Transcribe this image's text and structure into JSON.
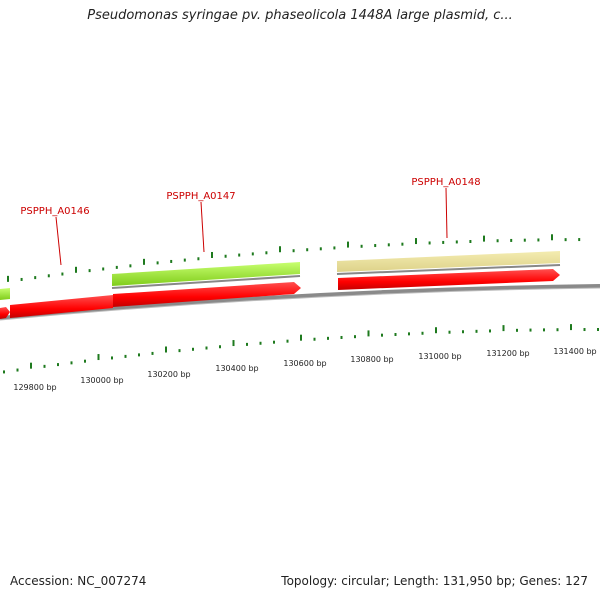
{
  "title": "Pseudomonas syringae pv. phaseolicola 1448A large plasmid, c...",
  "accession": "Accession: NC_007274",
  "summary": "Topology: circular; Length: 131,950 bp; Genes: 127",
  "colors": {
    "cds": "#ff0000",
    "gene_green": "#99ee22",
    "gene_tan": "#ece39b",
    "backbone": "#888888",
    "tick": "#1e7a1e",
    "label": "#cc0000"
  },
  "genes": [
    {
      "name": "PSPPH_A0146"
    },
    {
      "name": "PSPPH_A0147"
    },
    {
      "name": "PSPPH_A0148"
    }
  ],
  "ruler": {
    "labels": [
      "129800 bp",
      "130000 bp",
      "130200 bp",
      "130400 bp",
      "130600 bp",
      "130800 bp",
      "131000 bp",
      "131200 bp",
      "131400 bp"
    ]
  }
}
